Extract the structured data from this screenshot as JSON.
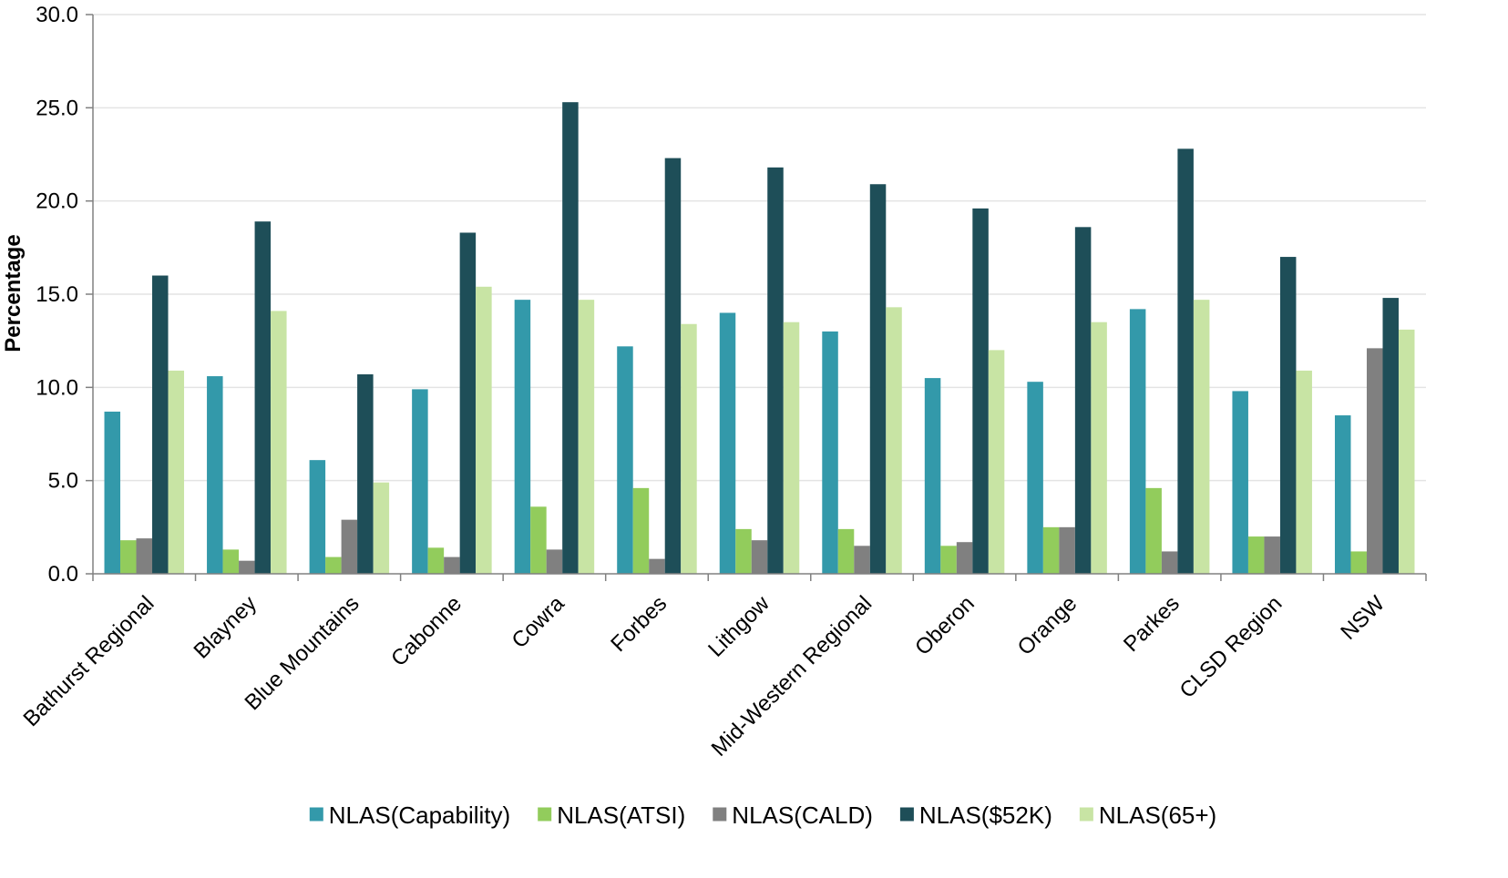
{
  "chart_data": {
    "type": "bar",
    "title": "",
    "xlabel": "",
    "ylabel": "Percentage",
    "ylim": [
      0,
      30
    ],
    "yticks": [
      "0.0",
      "5.0",
      "10.0",
      "15.0",
      "20.0",
      "25.0",
      "30.0"
    ],
    "ytick_values": [
      0,
      5,
      10,
      15,
      20,
      25,
      30
    ],
    "grid": true,
    "legend_position": "bottom",
    "categories": [
      "Bathurst Regional",
      "Blayney",
      "Blue Mountains",
      "Cabonne",
      "Cowra",
      "Forbes",
      "Lithgow",
      "Mid-Western Regional",
      "Oberon",
      "Orange",
      "Parkes",
      "CLSD Region",
      "NSW"
    ],
    "series": [
      {
        "name": "NLAS(Capability)",
        "color": "#3399aa",
        "values": [
          8.7,
          10.6,
          6.1,
          9.9,
          14.7,
          12.2,
          14.0,
          13.0,
          10.5,
          10.3,
          14.2,
          9.8,
          8.5
        ]
      },
      {
        "name": "NLAS(ATSI)",
        "color": "#92cc5c",
        "values": [
          1.8,
          1.3,
          0.9,
          1.4,
          3.6,
          4.6,
          2.4,
          2.4,
          1.5,
          2.5,
          4.6,
          2.0,
          1.2
        ]
      },
      {
        "name": "NLAS(CALD)",
        "color": "#808080",
        "values": [
          1.9,
          0.7,
          2.9,
          0.9,
          1.3,
          0.8,
          1.8,
          1.5,
          1.7,
          2.5,
          1.2,
          2.0,
          12.1
        ]
      },
      {
        "name": "NLAS($52K)",
        "color": "#1e4e58",
        "values": [
          16.0,
          18.9,
          10.7,
          18.3,
          25.3,
          22.3,
          21.8,
          20.9,
          19.6,
          18.6,
          22.8,
          17.0,
          14.8
        ]
      },
      {
        "name": "NLAS(65+)",
        "color": "#c8e4a4",
        "values": [
          10.9,
          14.1,
          4.9,
          15.4,
          14.7,
          13.4,
          13.5,
          14.3,
          12.0,
          13.5,
          14.7,
          10.9,
          13.1
        ]
      }
    ]
  },
  "colors": {
    "axis": "#808080",
    "grid": "#e4e4e4"
  }
}
